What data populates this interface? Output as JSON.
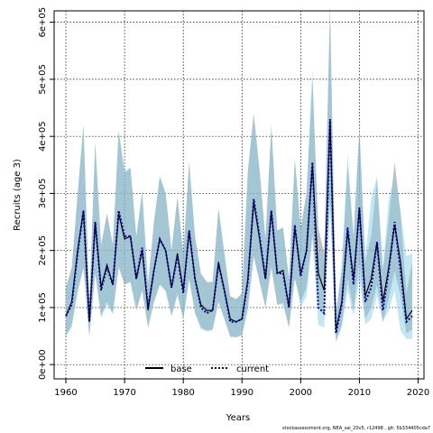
{
  "chart_data": {
    "type": "line",
    "xlabel": "Years",
    "ylabel": "Recruits (age 3)",
    "xlim": [
      1958,
      2021
    ],
    "ylim": [
      -25000,
      620000
    ],
    "x_ticks": [
      1960,
      1970,
      1980,
      1990,
      2000,
      2010,
      2020
    ],
    "x_tick_labels": [
      "1960",
      "1970",
      "1980",
      "1990",
      "2000",
      "2010",
      "2020"
    ],
    "y_ticks": [
      0,
      100000,
      200000,
      300000,
      400000,
      500000,
      600000
    ],
    "y_tick_labels": [
      "0e+00",
      "1e+05",
      "2e+05",
      "3e+05",
      "4e+05",
      "5e+05",
      "6e+05"
    ],
    "grid": true,
    "legend_position": "bottom-center",
    "colors": {
      "base_line": "#000000",
      "base_band": "#8a8a8a",
      "current_line": "#00008b",
      "current_band": "#87ceeb",
      "grid": "#000000"
    },
    "series": [
      {
        "name": "base",
        "line_style": "solid",
        "x": [
          1960,
          1961,
          1962,
          1963,
          1964,
          1965,
          1966,
          1967,
          1968,
          1969,
          1970,
          1971,
          1972,
          1973,
          1974,
          1975,
          1976,
          1977,
          1978,
          1979,
          1980,
          1981,
          1982,
          1983,
          1984,
          1985,
          1986,
          1987,
          1988,
          1989,
          1990,
          1991,
          1992,
          1993,
          1994,
          1995,
          1996,
          1997,
          1998,
          1999,
          2000,
          2001,
          2002,
          2003,
          2004,
          2005,
          2006,
          2007,
          2008,
          2009,
          2010,
          2011,
          2012,
          2013,
          2014,
          2015,
          2016,
          2017,
          2018,
          2019
        ],
        "y": [
          85000,
          110000,
          200000,
          270000,
          75000,
          250000,
          135000,
          175000,
          140000,
          265000,
          220000,
          225000,
          150000,
          200000,
          95000,
          165000,
          220000,
          200000,
          135000,
          195000,
          130000,
          235000,
          150000,
          105000,
          95000,
          95000,
          180000,
          130000,
          80000,
          75000,
          80000,
          150000,
          285000,
          220000,
          150000,
          270000,
          160000,
          165000,
          100000,
          240000,
          160000,
          200000,
          350000,
          160000,
          130000,
          430000,
          60000,
          110000,
          235000,
          150000,
          275000,
          120000,
          150000,
          215000,
          110000,
          170000,
          245000,
          180000,
          80000,
          95000
        ],
        "lower": [
          50000,
          70000,
          130000,
          170000,
          50000,
          160000,
          85000,
          110000,
          90000,
          170000,
          140000,
          145000,
          95000,
          130000,
          65000,
          110000,
          140000,
          130000,
          85000,
          125000,
          80000,
          150000,
          90000,
          65000,
          60000,
          62000,
          110000,
          80000,
          50000,
          48000,
          52000,
          100000,
          190000,
          145000,
          100000,
          170000,
          105000,
          108000,
          65000,
          150000,
          110000,
          135000,
          230000,
          110000,
          85000,
          290000,
          40000,
          70000,
          150000,
          95000,
          180000,
          80000,
          100000,
          140000,
          75000,
          115000,
          165000,
          120000,
          55000,
          62000
        ],
        "upper": [
          135000,
          170000,
          300000,
          420000,
          110000,
          390000,
          210000,
          265000,
          210000,
          410000,
          335000,
          345000,
          225000,
          300000,
          140000,
          250000,
          330000,
          300000,
          200000,
          295000,
          195000,
          355000,
          225000,
          160000,
          145000,
          145000,
          275000,
          195000,
          120000,
          115000,
          125000,
          340000,
          440000,
          340000,
          220000,
          420000,
          235000,
          240000,
          150000,
          360000,
          240000,
          300000,
          500000,
          240000,
          195000,
          630000,
          90000,
          165000,
          350000,
          225000,
          410000,
          180000,
          225000,
          325000,
          165000,
          255000,
          355000,
          265000,
          125000,
          180000
        ]
      },
      {
        "name": "current",
        "line_style": "dotted",
        "x": [
          1960,
          1961,
          1962,
          1963,
          1964,
          1965,
          1966,
          1967,
          1968,
          1969,
          1970,
          1971,
          1972,
          1973,
          1974,
          1975,
          1976,
          1977,
          1978,
          1979,
          1980,
          1981,
          1982,
          1983,
          1984,
          1985,
          1986,
          1987,
          1988,
          1989,
          1990,
          1991,
          1992,
          1993,
          1994,
          1995,
          1996,
          1997,
          1998,
          1999,
          2000,
          2001,
          2002,
          2003,
          2004,
          2005,
          2006,
          2007,
          2008,
          2009,
          2010,
          2011,
          2012,
          2013,
          2014,
          2015,
          2016,
          2017,
          2018,
          2019
        ],
        "y": [
          85000,
          105000,
          195000,
          270000,
          75000,
          250000,
          130000,
          170000,
          140000,
          270000,
          225000,
          225000,
          150000,
          205000,
          100000,
          165000,
          220000,
          200000,
          135000,
          190000,
          125000,
          235000,
          150000,
          100000,
          90000,
          95000,
          175000,
          130000,
          75000,
          75000,
          80000,
          145000,
          290000,
          225000,
          150000,
          270000,
          160000,
          160000,
          100000,
          245000,
          155000,
          200000,
          355000,
          100000,
          90000,
          430000,
          55000,
          105000,
          240000,
          140000,
          275000,
          110000,
          135000,
          215000,
          95000,
          165000,
          250000,
          165000,
          75000,
          85000
        ],
        "lower": [
          50000,
          65000,
          125000,
          170000,
          48000,
          160000,
          82000,
          105000,
          88000,
          175000,
          145000,
          145000,
          95000,
          130000,
          65000,
          108000,
          140000,
          128000,
          85000,
          120000,
          78000,
          150000,
          92000,
          62000,
          58000,
          60000,
          110000,
          80000,
          48000,
          48000,
          50000,
          95000,
          190000,
          145000,
          100000,
          175000,
          105000,
          105000,
          65000,
          155000,
          100000,
          120000,
          220000,
          70000,
          65000,
          270000,
          40000,
          65000,
          130000,
          85000,
          150000,
          70000,
          80000,
          120000,
          75000,
          95000,
          130000,
          60000,
          45000,
          45000
        ],
        "upper": [
          135000,
          160000,
          290000,
          420000,
          110000,
          385000,
          205000,
          260000,
          205000,
          410000,
          340000,
          345000,
          225000,
          305000,
          145000,
          245000,
          330000,
          300000,
          200000,
          290000,
          190000,
          350000,
          225000,
          155000,
          140000,
          145000,
          270000,
          195000,
          115000,
          115000,
          120000,
          335000,
          435000,
          340000,
          220000,
          415000,
          235000,
          240000,
          150000,
          360000,
          235000,
          305000,
          520000,
          200000,
          190000,
          620000,
          90000,
          175000,
          370000,
          225000,
          420000,
          185000,
          290000,
          330000,
          170000,
          290000,
          330000,
          270000,
          190000,
          195000
        ]
      }
    ]
  },
  "footer_text": "stockassessment.org, NEA_sai_20v5, r12498 , git: 5b334405cda7"
}
